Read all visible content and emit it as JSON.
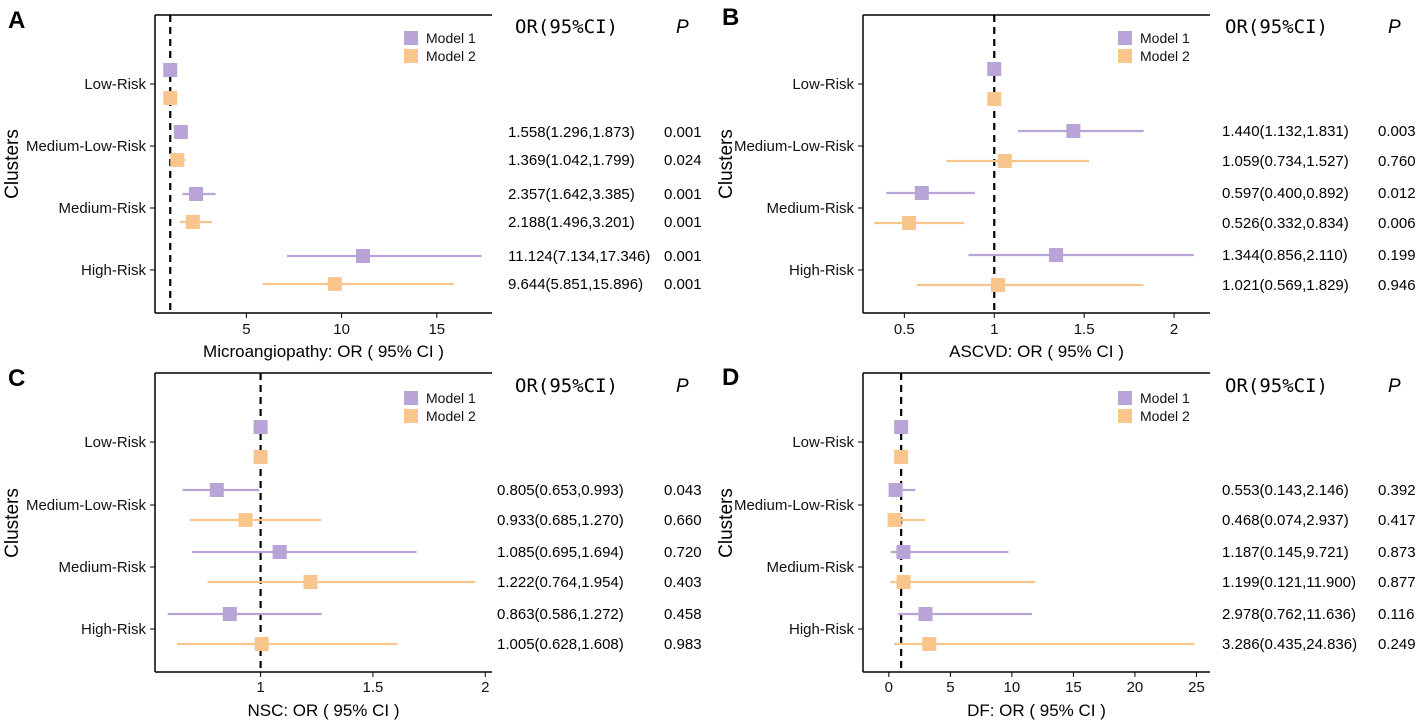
{
  "figure": {
    "y_axis_title": "Clusters",
    "table_header_or": "OR(95%CI)",
    "table_header_p": "P",
    "colors": {
      "model1": "#b8a4d6",
      "model2": "#f8c68d",
      "reference_line": "#000000"
    },
    "legend": [
      "Model 1",
      "Model 2"
    ]
  },
  "chart_data": [
    {
      "panel": "A",
      "type": "forest",
      "xlabel": "Microangiopathy: OR ( 95% CI )",
      "ylabel": "Clusters",
      "xlim": [
        0.2,
        17.9
      ],
      "xticks": [
        5,
        10,
        15
      ],
      "reference": 1,
      "categories": [
        "Low-Risk",
        "Medium-Low-Risk",
        "Medium-Risk",
        "High-Risk"
      ],
      "series": [
        {
          "name": "Model 1",
          "points": [
            {
              "or": 1,
              "lo": 1,
              "hi": 1,
              "text": "",
              "p": ""
            },
            {
              "or": 1.558,
              "lo": 1.296,
              "hi": 1.873,
              "text": "1.558(1.296,1.873)",
              "p": "0.001"
            },
            {
              "or": 2.357,
              "lo": 1.642,
              "hi": 3.385,
              "text": "2.357(1.642,3.385)",
              "p": "0.001"
            },
            {
              "or": 11.124,
              "lo": 7.134,
              "hi": 17.346,
              "text": "11.124(7.134,17.346)",
              "p": "0.001"
            }
          ]
        },
        {
          "name": "Model 2",
          "points": [
            {
              "or": 1,
              "lo": 1,
              "hi": 1,
              "text": "",
              "p": ""
            },
            {
              "or": 1.369,
              "lo": 1.042,
              "hi": 1.799,
              "text": "1.369(1.042,1.799)",
              "p": "0.024"
            },
            {
              "or": 2.188,
              "lo": 1.496,
              "hi": 3.201,
              "text": "2.188(1.496,3.201)",
              "p": "0.001"
            },
            {
              "or": 9.644,
              "lo": 5.851,
              "hi": 15.896,
              "text": "9.644(5.851,15.896)",
              "p": "0.001"
            }
          ]
        }
      ]
    },
    {
      "panel": "B",
      "type": "forest",
      "xlabel": "ASCVD: OR ( 95% CI )",
      "ylabel": "Clusters",
      "xlim": [
        0.27,
        2.2
      ],
      "xticks": [
        0.5,
        1,
        1.5,
        2
      ],
      "reference": 1,
      "categories": [
        "Low-Risk",
        "Medium-Low-Risk",
        "Medium-Risk",
        "High-Risk"
      ],
      "series": [
        {
          "name": "Model 1",
          "points": [
            {
              "or": 1,
              "lo": 1,
              "hi": 1,
              "text": "",
              "p": ""
            },
            {
              "or": 1.44,
              "lo": 1.132,
              "hi": 1.831,
              "text": "1.440(1.132,1.831)",
              "p": "0.003"
            },
            {
              "or": 0.597,
              "lo": 0.4,
              "hi": 0.892,
              "text": "0.597(0.400,0.892)",
              "p": "0.012"
            },
            {
              "or": 1.344,
              "lo": 0.856,
              "hi": 2.11,
              "text": "1.344(0.856,2.110)",
              "p": "0.199"
            }
          ]
        },
        {
          "name": "Model 2",
          "points": [
            {
              "or": 1,
              "lo": 1,
              "hi": 1,
              "text": "",
              "p": ""
            },
            {
              "or": 1.059,
              "lo": 0.734,
              "hi": 1.527,
              "text": "1.059(0.734,1.527)",
              "p": "0.760"
            },
            {
              "or": 0.526,
              "lo": 0.332,
              "hi": 0.834,
              "text": "0.526(0.332,0.834)",
              "p": "0.006"
            },
            {
              "or": 1.021,
              "lo": 0.569,
              "hi": 1.829,
              "text": "1.021(0.569,1.829)",
              "p": "0.946"
            }
          ]
        }
      ]
    },
    {
      "panel": "C",
      "type": "forest",
      "xlabel": "NSC: OR ( 95% CI )",
      "ylabel": "Clusters",
      "xlim": [
        0.53,
        2.03
      ],
      "xticks": [
        1,
        1.5,
        2
      ],
      "reference": 1,
      "categories": [
        "Low-Risk",
        "Medium-Low-Risk",
        "Medium-Risk",
        "High-Risk"
      ],
      "series": [
        {
          "name": "Model 1",
          "points": [
            {
              "or": 1,
              "lo": 1,
              "hi": 1,
              "text": "",
              "p": ""
            },
            {
              "or": 0.805,
              "lo": 0.653,
              "hi": 0.993,
              "text": "0.805(0.653,0.993)",
              "p": "0.043"
            },
            {
              "or": 1.085,
              "lo": 0.695,
              "hi": 1.694,
              "text": "1.085(0.695,1.694)",
              "p": "0.720"
            },
            {
              "or": 0.863,
              "lo": 0.586,
              "hi": 1.272,
              "text": "0.863(0.586,1.272)",
              "p": "0.458"
            }
          ]
        },
        {
          "name": "Model 2",
          "points": [
            {
              "or": 1,
              "lo": 1,
              "hi": 1,
              "text": "",
              "p": ""
            },
            {
              "or": 0.933,
              "lo": 0.685,
              "hi": 1.27,
              "text": "0.933(0.685,1.270)",
              "p": "0.660"
            },
            {
              "or": 1.222,
              "lo": 0.764,
              "hi": 1.954,
              "text": "1.222(0.764,1.954)",
              "p": "0.403"
            },
            {
              "or": 1.005,
              "lo": 0.628,
              "hi": 1.608,
              "text": "1.005(0.628,1.608)",
              "p": "0.983"
            }
          ]
        }
      ]
    },
    {
      "panel": "D",
      "type": "forest",
      "xlabel": "DF: OR ( 95% CI )",
      "ylabel": "Clusters",
      "xlim": [
        -2.1,
        26.1
      ],
      "xticks": [
        0,
        5,
        10,
        15,
        20,
        25
      ],
      "reference": 1,
      "categories": [
        "Low-Risk",
        "Medium-Low-Risk",
        "Medium-Risk",
        "High-Risk"
      ],
      "series": [
        {
          "name": "Model 1",
          "points": [
            {
              "or": 1,
              "lo": 1,
              "hi": 1,
              "text": "",
              "p": ""
            },
            {
              "or": 0.553,
              "lo": 0.143,
              "hi": 2.146,
              "text": "0.553(0.143,2.146)",
              "p": "0.392"
            },
            {
              "or": 1.187,
              "lo": 0.145,
              "hi": 9.721,
              "text": "1.187(0.145,9.721)",
              "p": "0.873"
            },
            {
              "or": 2.978,
              "lo": 0.762,
              "hi": 11.636,
              "text": "2.978(0.762,11.636)",
              "p": "0.116"
            }
          ]
        },
        {
          "name": "Model 2",
          "points": [
            {
              "or": 1,
              "lo": 1,
              "hi": 1,
              "text": "",
              "p": ""
            },
            {
              "or": 0.468,
              "lo": 0.074,
              "hi": 2.937,
              "text": "0.468(0.074,2.937)",
              "p": "0.417"
            },
            {
              "or": 1.199,
              "lo": 0.121,
              "hi": 11.9,
              "text": "1.199(0.121,11.900)",
              "p": "0.877"
            },
            {
              "or": 3.286,
              "lo": 0.435,
              "hi": 24.836,
              "text": "3.286(0.435,24.836)",
              "p": "0.249"
            }
          ]
        }
      ]
    }
  ]
}
